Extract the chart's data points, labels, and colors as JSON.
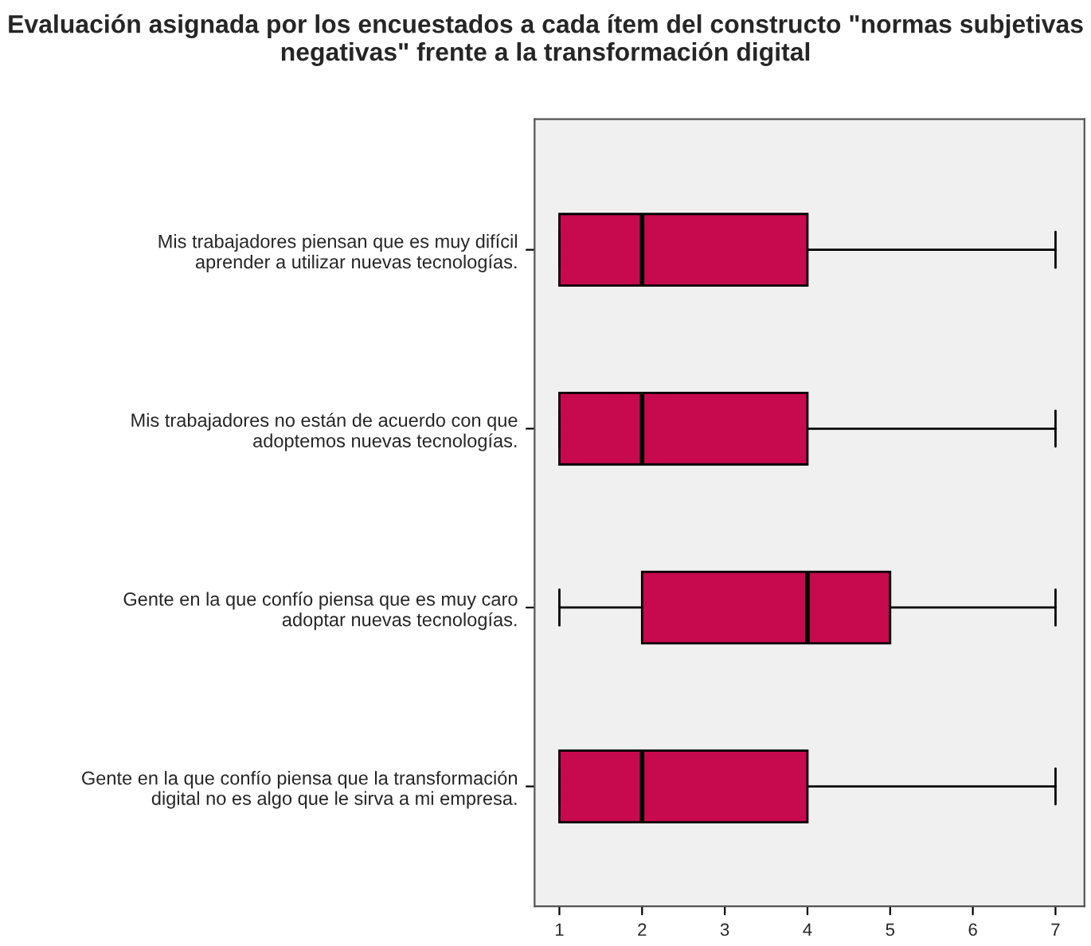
{
  "chart_data": {
    "type": "box",
    "orientation": "horizontal",
    "title": "Evaluación asignada por los encuestados a cada ítem del constructo \"normas subjetivas negativas\" frente a la transformación digital",
    "categories": [
      "Mis trabajadores piensan que es muy difícil\naprender a utilizar nuevas tecnologías.",
      "Mis trabajadores no están de acuerdo con que\nadoptemos nuevas tecnologías.",
      "Gente en la que confío piensa que es muy caro\nadoptar nuevas tecnologías.",
      "Gente en la que confío piensa que la transformación\ndigital no es algo que le sirva a mi empresa."
    ],
    "boxes": [
      {
        "low": 1,
        "q1": 1,
        "median": 2,
        "q3": 4,
        "high": 7
      },
      {
        "low": 1,
        "q1": 1,
        "median": 2,
        "q3": 4,
        "high": 7
      },
      {
        "low": 1,
        "q1": 2,
        "median": 4,
        "q3": 5,
        "high": 7
      },
      {
        "low": 1,
        "q1": 1,
        "median": 2,
        "q3": 4,
        "high": 7
      }
    ],
    "color": "#c70a4e",
    "xlim": [
      0.7,
      7.35
    ],
    "xticks": [
      1,
      2,
      3,
      4,
      5,
      6,
      7
    ],
    "grid": false,
    "legend": false
  }
}
